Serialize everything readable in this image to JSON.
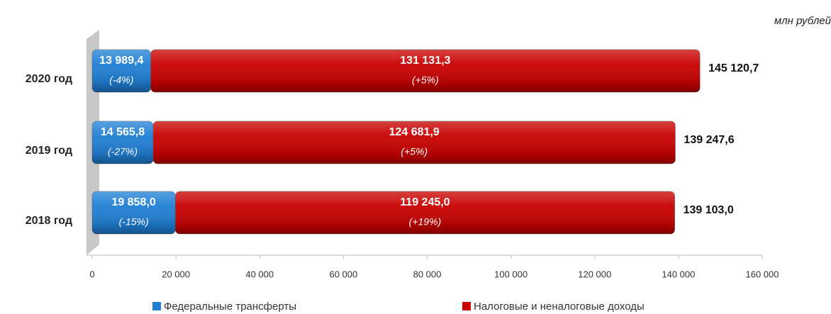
{
  "chart_data": {
    "type": "stacked-barh",
    "unit": "млн рублей",
    "categories": [
      "2020 год",
      "2019 год",
      "2018 год"
    ],
    "series": [
      {
        "name": "Федеральные трансферты",
        "color": "#1f7fd4",
        "values": [
          13989.4,
          14565.8,
          19858.0
        ],
        "value_labels": [
          "13 989,4",
          "14 565,8",
          "19 858,0"
        ],
        "change_labels": [
          "(-4%)",
          "(-27%)",
          "(-15%)"
        ]
      },
      {
        "name": "Налоговые и неналоговые доходы",
        "color": "#c80000",
        "values": [
          131131.3,
          124681.9,
          119245.0
        ],
        "value_labels": [
          "131 131,3",
          "124 681,9",
          "119 245,0"
        ],
        "change_labels": [
          "(+5%)",
          "(+5%)",
          "(+19%)"
        ]
      }
    ],
    "totals": [
      145120.7,
      139247.6,
      139103.0
    ],
    "total_labels": [
      "145 120,7",
      "139 247,6",
      "139 103,0"
    ],
    "xlim": [
      0,
      160000
    ],
    "xticks": [
      0,
      {
        "value": 20000,
        "label": "20 000"
      },
      {
        "value": 40000,
        "label": "40 000"
      },
      {
        "value": 60000,
        "label": "60 000"
      },
      {
        "value": 80000,
        "label": "80 000"
      },
      {
        "value": 100000,
        "label": "100 000"
      },
      {
        "value": 120000,
        "label": "120 000"
      },
      {
        "value": 140000,
        "label": "140 000"
      },
      {
        "value": 160000,
        "label": "160 000"
      }
    ],
    "legend": "bottom"
  }
}
